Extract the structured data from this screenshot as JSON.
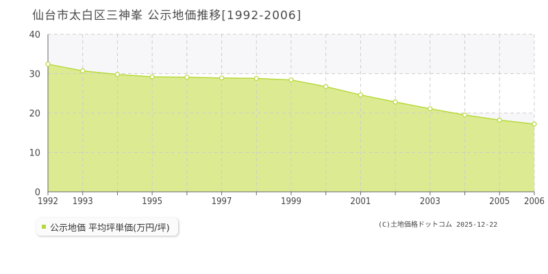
{
  "page": {
    "title": "仙台市太白区三神峯  公示地価推移[1992-2006]",
    "legend_label": "公示地価 平均坪単価(万円/坪)",
    "credit": "(C)土地価格ドットコム 2025-12-22"
  },
  "colors": {
    "area_fill": "#dceb92",
    "line": "#b5d93a",
    "marker_fill": "#ffffff",
    "grid": "#cccccc",
    "band": "#f7f7fa",
    "axis": "#666666"
  },
  "chart_data": {
    "type": "area",
    "title": "仙台市太白区三神峯  公示地価推移[1992-2006]",
    "xlabel": "",
    "ylabel": "",
    "xlim": [
      1992,
      2006
    ],
    "ylim": [
      0,
      40
    ],
    "yticks": [
      0,
      10,
      20,
      30,
      40
    ],
    "xticks": [
      1992,
      1993,
      1995,
      1997,
      1999,
      2001,
      2003,
      2005,
      2006
    ],
    "grid": true,
    "legend_position": "bottom-left",
    "series": [
      {
        "name": "公示地価 平均坪単価(万円/坪)",
        "x": [
          1992,
          1993,
          1994,
          1995,
          1996,
          1997,
          1998,
          1999,
          2000,
          2001,
          2002,
          2003,
          2004,
          2005,
          2006
        ],
        "values": [
          32.4,
          30.7,
          29.8,
          29.2,
          29.1,
          28.9,
          28.8,
          28.4,
          26.7,
          24.6,
          22.8,
          21.1,
          19.5,
          18.2,
          17.2
        ]
      }
    ]
  }
}
